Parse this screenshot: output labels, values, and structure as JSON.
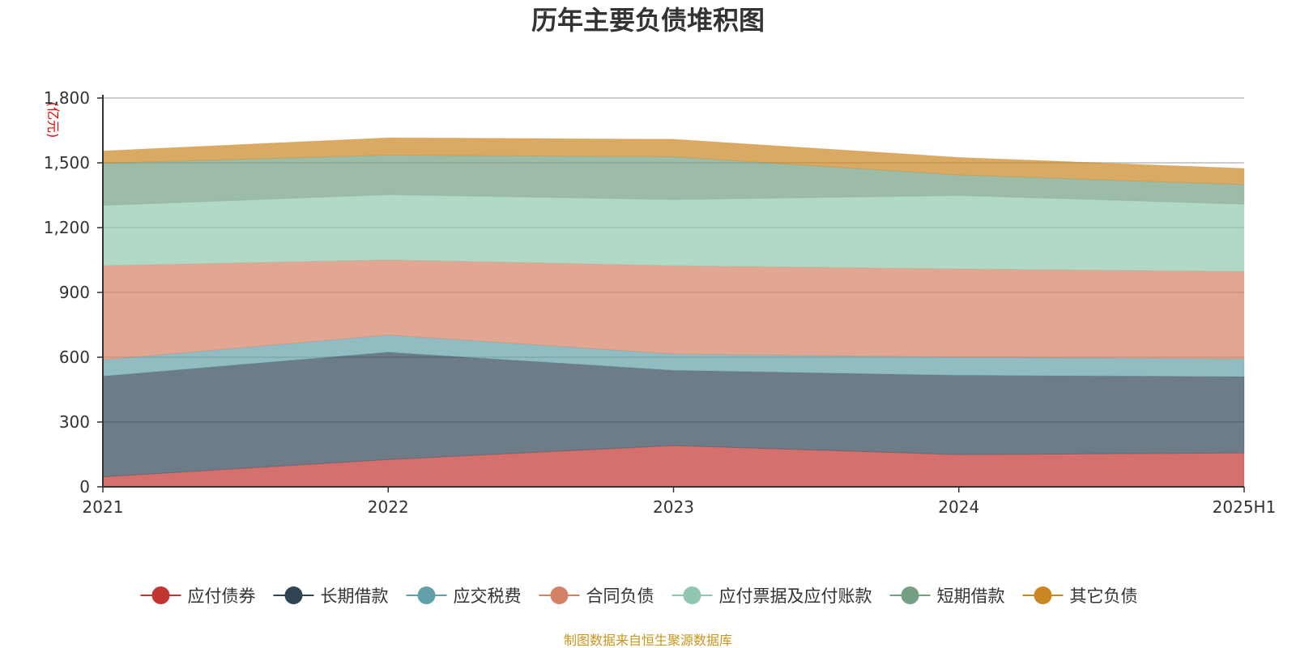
{
  "chart_data": {
    "type": "area",
    "stacked": true,
    "title": "历年主要负债堆积图",
    "unit_label": "(亿元)",
    "source": "制图数据来自恒生聚源数据库",
    "categories": [
      "2021",
      "2022",
      "2023",
      "2024",
      "2025H1"
    ],
    "ylim": [
      0,
      1800
    ],
    "yticks": [
      0,
      300,
      600,
      900,
      1200,
      1500,
      1800
    ],
    "ytick_labels": [
      "0",
      "300",
      "600",
      "900",
      "1,200",
      "1,500",
      "1,800"
    ],
    "grid": true,
    "legend_position": "bottom",
    "series": [
      {
        "name": "应付债券",
        "color": "#c23531",
        "values": [
          46,
          126,
          191,
          149,
          157
        ]
      },
      {
        "name": "长期借款",
        "color": "#2f4554",
        "values": [
          466,
          497,
          348,
          367,
          353
        ]
      },
      {
        "name": "应交税费",
        "color": "#61a0a8",
        "values": [
          76,
          80,
          76,
          84,
          82
        ]
      },
      {
        "name": "合同负债",
        "color": "#d48265",
        "values": [
          436,
          348,
          409,
          409,
          405
        ]
      },
      {
        "name": "应付票据及应付账款",
        "color": "#91c7ae",
        "values": [
          279,
          302,
          306,
          340,
          312
        ]
      },
      {
        "name": "短期借款",
        "color": "#749f83",
        "values": [
          195,
          183,
          198,
          95,
          90
        ]
      },
      {
        "name": "其它负债",
        "color": "#ca8622",
        "values": [
          57,
          80,
          81,
          81,
          75
        ]
      }
    ]
  }
}
